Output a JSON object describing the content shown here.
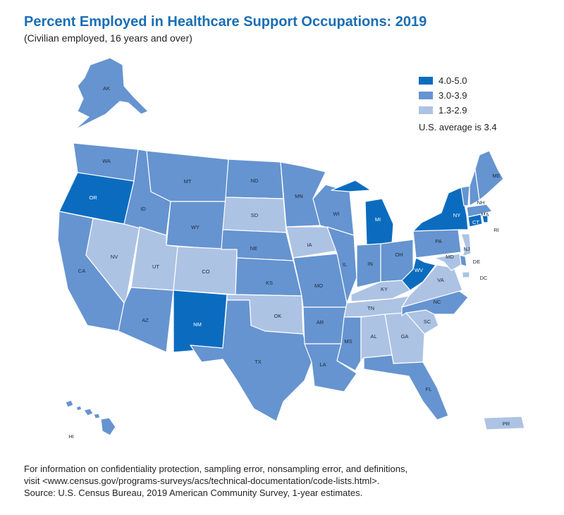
{
  "title": "Percent Employed in Healthcare Support Occupations: 2019",
  "subtitle": "(Civilian employed, 16 years and over)",
  "colors": {
    "high": "#0b6cbf",
    "mid": "#6594d0",
    "low": "#adc3e4"
  },
  "legend": {
    "items": [
      {
        "label": "4.0-5.0",
        "key": "high"
      },
      {
        "label": "3.0-3.9",
        "key": "mid"
      },
      {
        "label": "1.3-2.9",
        "key": "low"
      }
    ],
    "note": "U.S. average is 3.4"
  },
  "states": {
    "AK": "mid",
    "HI": "mid",
    "PR": "low",
    "WA": "mid",
    "OR": "high",
    "CA": "mid",
    "NV": "low",
    "ID": "mid",
    "MT": "mid",
    "WY": "mid",
    "UT": "low",
    "CO": "low",
    "AZ": "mid",
    "NM": "high",
    "ND": "mid",
    "SD": "low",
    "NE": "mid",
    "KS": "mid",
    "OK": "low",
    "TX": "mid",
    "MN": "mid",
    "IA": "low",
    "MO": "mid",
    "AR": "mid",
    "LA": "mid",
    "WI": "mid",
    "IL": "mid",
    "MI": "high",
    "IN": "mid",
    "OH": "mid",
    "KY": "low",
    "TN": "low",
    "MS": "mid",
    "AL": "low",
    "GA": "low",
    "FL": "mid",
    "SC": "low",
    "NC": "mid",
    "VA": "low",
    "WV": "high",
    "PA": "mid",
    "NY": "high",
    "ME": "mid",
    "VT": "mid",
    "NH": "mid",
    "MA": "mid",
    "RI": "high",
    "CT": "high",
    "NJ": "low",
    "DE": "mid",
    "MD": "low",
    "DC": "low"
  },
  "footer": [
    "For information on confidentiality protection, sampling error, nonsampling error, and definitions,",
    "visit <www.census.gov/programs-surveys/acs/technical-documentation/code-lists.html>.",
    "Source: U.S. Census Bureau, 2019 American Community Survey, 1-year estimates."
  ]
}
